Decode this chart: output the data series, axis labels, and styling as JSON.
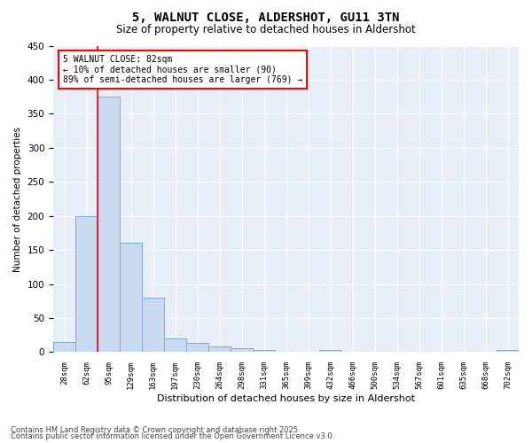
{
  "title_line1": "5, WALNUT CLOSE, ALDERSHOT, GU11 3TN",
  "title_line2": "Size of property relative to detached houses in Aldershot",
  "xlabel": "Distribution of detached houses by size in Aldershot",
  "ylabel": "Number of detached properties",
  "categories": [
    "28sqm",
    "62sqm",
    "95sqm",
    "129sqm",
    "163sqm",
    "197sqm",
    "230sqm",
    "264sqm",
    "298sqm",
    "331sqm",
    "365sqm",
    "399sqm",
    "432sqm",
    "466sqm",
    "500sqm",
    "534sqm",
    "567sqm",
    "601sqm",
    "635sqm",
    "668sqm",
    "702sqm"
  ],
  "values": [
    15,
    200,
    375,
    160,
    80,
    20,
    14,
    8,
    6,
    3,
    0,
    0,
    3,
    0,
    0,
    0,
    0,
    0,
    0,
    0,
    3
  ],
  "bar_color": "#c9d9f0",
  "bar_edge_color": "#7aabdb",
  "red_line_x": 1.5,
  "annotation_line1": "5 WALNUT CLOSE: 82sqm",
  "annotation_line2": "← 10% of detached houses are smaller (90)",
  "annotation_line3": "89% of semi-detached houses are larger (769) →",
  "footer_line1": "Contains HM Land Registry data © Crown copyright and database right 2025.",
  "footer_line2": "Contains public sector information licensed under the Open Government Licence v3.0.",
  "ylim": [
    0,
    450
  ],
  "yticks": [
    0,
    50,
    100,
    150,
    200,
    250,
    300,
    350,
    400,
    450
  ],
  "plot_bg_color": "#e8eef8",
  "figure_bg_color": "#ffffff"
}
